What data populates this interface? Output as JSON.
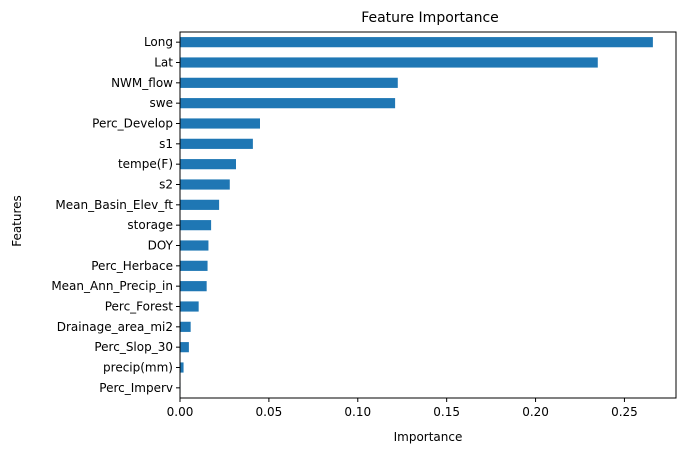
{
  "chart_data": {
    "type": "bar",
    "orientation": "horizontal",
    "title": "Feature Importance",
    "xlabel": "Importance",
    "ylabel": "Features",
    "xlim": [
      0,
      0.279
    ],
    "x_ticks": [
      0.0,
      0.05,
      0.1,
      0.15,
      0.2,
      0.25
    ],
    "x_tick_labels": [
      "0.00",
      "0.05",
      "0.10",
      "0.15",
      "0.20",
      "0.25"
    ],
    "grid": false,
    "bar_color": "#1f77b4",
    "categories": [
      "Long",
      "Lat",
      "NWM_flow",
      "swe",
      "Perc_Develop",
      "s1",
      "tempe(F)",
      "s2",
      "Mean_Basin_Elev_ft",
      "storage",
      "DOY",
      "Perc_Herbace",
      "Mean_Ann_Precip_in",
      "Perc_Forest",
      "Drainage_area_mi2",
      "Perc_Slop_30",
      "precip(mm)",
      "Perc_Imperv"
    ],
    "values": [
      0.266,
      0.235,
      0.1225,
      0.121,
      0.045,
      0.041,
      0.0315,
      0.028,
      0.022,
      0.0175,
      0.016,
      0.0155,
      0.015,
      0.0105,
      0.006,
      0.005,
      0.002,
      0.0003
    ]
  }
}
